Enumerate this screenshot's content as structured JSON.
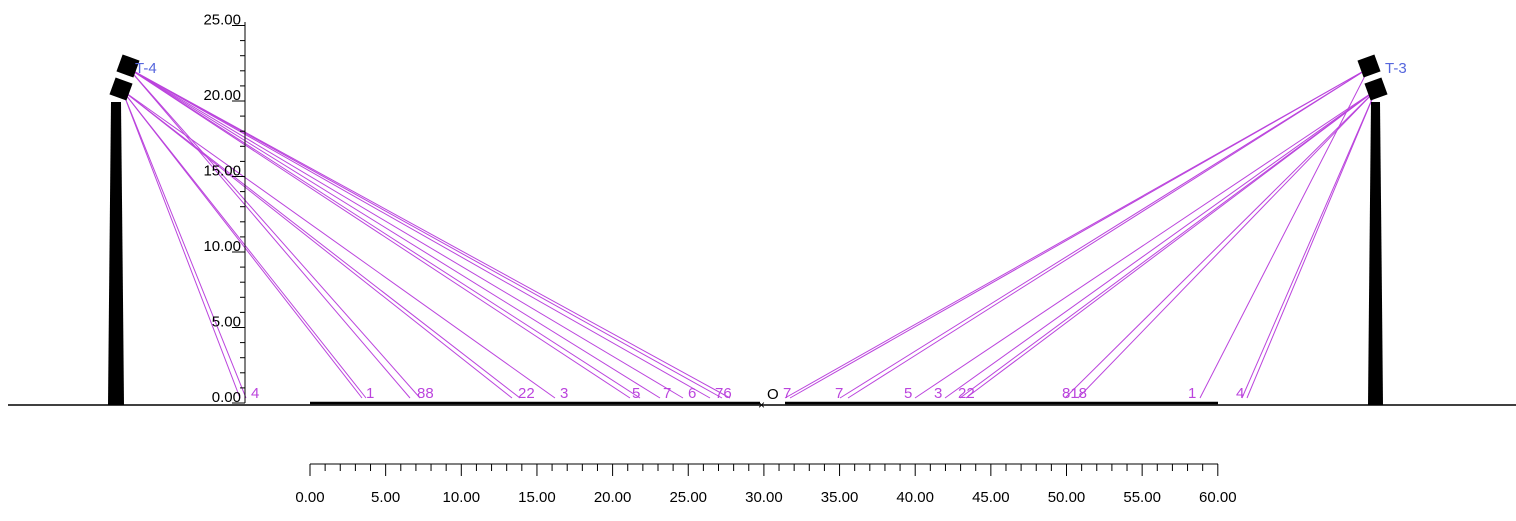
{
  "diagram": {
    "vertical_axis": {
      "ticks": [
        "25.00",
        "20.00",
        "15.00",
        "10.00",
        "5.00",
        "0.00"
      ],
      "values": [
        25,
        20,
        15,
        10,
        5,
        0
      ]
    },
    "horizontal_scale": {
      "ticks": [
        "0.00",
        "5.00",
        "10.00",
        "15.00",
        "20.00",
        "25.00",
        "30.00",
        "35.00",
        "40.00",
        "45.00",
        "50.00",
        "55.00",
        "60.00"
      ],
      "values": [
        0,
        5,
        10,
        15,
        20,
        25,
        30,
        35,
        40,
        45,
        50,
        55,
        60
      ]
    },
    "origin_label": "O",
    "poles": [
      {
        "label": "T-4"
      },
      {
        "label": "T-3"
      }
    ],
    "left_aim_labels": [
      "4",
      "1",
      "88",
      "22",
      "3",
      "5",
      "7",
      "6",
      "76"
    ],
    "right_aim_labels": [
      "7",
      "7",
      "5",
      "3",
      "22",
      "818",
      "1",
      "4"
    ],
    "colors": {
      "aim_line": "#bb44dd",
      "pole_label": "#5566dd",
      "structure": "#000000"
    }
  }
}
